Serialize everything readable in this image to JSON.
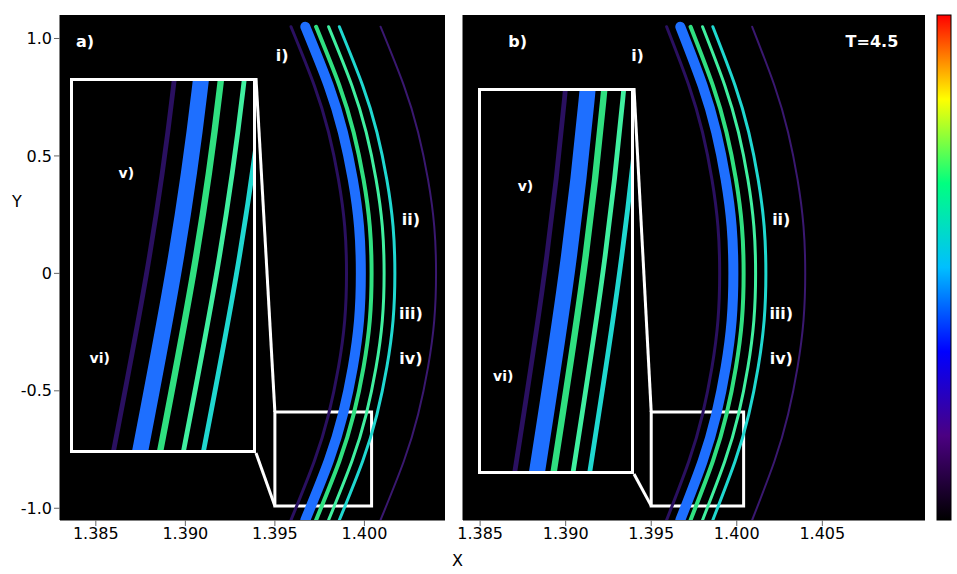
{
  "chart_data": [
    {
      "type": "line",
      "tick_labels": true,
      "xlim": [
        1.383,
        1.4045
      ],
      "xticks": [
        1.385,
        {
          "value": 1.39,
          "label": "1.390"
        },
        1.395,
        {
          "value": 1.4,
          "label": "1.400"
        }
      ],
      "ylim": [
        -1.05,
        1.1
      ],
      "yticks": [
        {
          "value": 1,
          "label": "1.0"
        },
        0.5,
        0,
        -0.5,
        {
          "value": -1,
          "label": "-1.0"
        }
      ],
      "y": [
        -1.05,
        -0.8,
        -0.6,
        -0.4,
        -0.2,
        0,
        0.2,
        0.4,
        0.6,
        0.8,
        1.05
      ],
      "series": [
        {
          "color": "#2a1060",
          "x": [
            1.3959,
            1.3972,
            1.398,
            1.39855,
            1.3989,
            1.399,
            1.3989,
            1.39855,
            1.398,
            1.3972,
            1.3959
          ]
        },
        {
          "color": "#1e6fff",
          "x": [
            1.3967,
            1.398,
            1.3988,
            1.39935,
            1.3997,
            1.3998,
            1.3997,
            1.39935,
            1.3988,
            1.398,
            1.3967
          ]
        },
        {
          "color": "#30e080",
          "x": [
            1.3973,
            1.3986,
            1.3994,
            1.39995,
            1.4003,
            1.4004,
            1.4003,
            1.39995,
            1.3994,
            1.3986,
            1.3973
          ]
        },
        {
          "color": "#40f0a0",
          "x": [
            1.398,
            1.3993,
            1.4001,
            1.40065,
            1.401,
            1.4011,
            1.401,
            1.40065,
            1.4001,
            1.3993,
            1.398
          ]
        },
        {
          "color": "#20d8d0",
          "x": [
            1.3986,
            1.3999,
            1.4007,
            1.40125,
            1.4016,
            1.4017,
            1.4016,
            1.40125,
            1.4007,
            1.3999,
            1.3986
          ]
        },
        {
          "color": "#3a1870",
          "x": [
            1.4009,
            1.4022,
            1.403,
            1.40355,
            1.4039,
            1.404,
            1.4039,
            1.40355,
            1.403,
            1.4022,
            1.4009
          ]
        }
      ],
      "annotations": [
        {
          "text": "a)",
          "x": 1.3844,
          "y": 0.99
        },
        {
          "text": "i)",
          "x": 1.3954,
          "y": 0.93
        },
        {
          "text": "ii)",
          "x": 1.4026,
          "y": 0.23
        },
        {
          "text": "iii)",
          "x": 1.4026,
          "y": -0.17
        },
        {
          "text": "iv)",
          "x": 1.4026,
          "y": -0.36
        }
      ],
      "inset": {
        "xlim": [
          1.395,
          1.4004
        ],
        "ylim": [
          -0.99,
          -0.59
        ],
        "annotations": [
          {
            "text": "v)",
            "x": 1.3966,
            "y": -0.69
          },
          {
            "text": "vi)",
            "x": 1.3958,
            "y": -0.89
          }
        ]
      }
    },
    {
      "type": "line",
      "tick_labels": "x",
      "xlim": [
        1.384,
        1.411
      ],
      "xticks": [
        1.385,
        {
          "value": 1.39,
          "label": "1.390"
        },
        1.395,
        {
          "value": 1.4,
          "label": "1.400"
        },
        1.405
      ],
      "ylim": [
        -1.05,
        1.1
      ],
      "yticks": [
        {
          "value": 1,
          "label": "1.0"
        },
        0.5,
        0,
        -0.5,
        {
          "value": -1,
          "label": "-1.0"
        }
      ],
      "y": [
        -1.05,
        -0.8,
        -0.6,
        -0.4,
        -0.2,
        0,
        0.2,
        0.4,
        0.6,
        0.8,
        1.05
      ],
      "series": [
        {
          "color": "#2a1060",
          "x": [
            1.3959,
            1.3972,
            1.398,
            1.39855,
            1.3989,
            1.399,
            1.3989,
            1.39855,
            1.398,
            1.3972,
            1.3959
          ]
        },
        {
          "color": "#1e6fff",
          "x": [
            1.3967,
            1.398,
            1.3988,
            1.39935,
            1.3997,
            1.3998,
            1.3997,
            1.39935,
            1.3988,
            1.398,
            1.3967
          ]
        },
        {
          "color": "#30e080",
          "x": [
            1.3973,
            1.3986,
            1.3994,
            1.39995,
            1.4003,
            1.4004,
            1.4003,
            1.39995,
            1.3994,
            1.3986,
            1.3973
          ]
        },
        {
          "color": "#40f0a0",
          "x": [
            1.398,
            1.3993,
            1.4001,
            1.40065,
            1.401,
            1.4011,
            1.401,
            1.40065,
            1.4001,
            1.3993,
            1.398
          ]
        },
        {
          "color": "#20d8d0",
          "x": [
            1.3986,
            1.3999,
            1.4007,
            1.40125,
            1.4016,
            1.4017,
            1.4016,
            1.40125,
            1.4007,
            1.3999,
            1.3986
          ]
        },
        {
          "color": "#3a1870",
          "x": [
            1.4009,
            1.4022,
            1.403,
            1.40355,
            1.4039,
            1.404,
            1.4039,
            1.40355,
            1.403,
            1.4022,
            1.4009
          ]
        }
      ],
      "annotations": [
        {
          "text": "b)",
          "x": 1.3872,
          "y": 0.99
        },
        {
          "text": "T=4.5",
          "x": 1.4079,
          "y": 0.99
        },
        {
          "text": "i)",
          "x": 1.3942,
          "y": 0.93
        },
        {
          "text": "ii)",
          "x": 1.4026,
          "y": 0.23
        },
        {
          "text": "iii)",
          "x": 1.4026,
          "y": -0.17
        },
        {
          "text": "iv)",
          "x": 1.4026,
          "y": -0.36
        }
      ],
      "inset": {
        "xlim": [
          1.395,
          1.4004
        ],
        "ylim": [
          -0.99,
          -0.59
        ],
        "annotations": [
          {
            "text": "v)",
            "x": 1.3966,
            "y": -0.69
          },
          {
            "text": "vi)",
            "x": 1.3958,
            "y": -0.89
          }
        ]
      }
    }
  ],
  "xlabel": "X",
  "ylabel": "Y",
  "colorbar": {
    "colors": [
      "#000000",
      "#4b0082",
      "#0000ff",
      "#00bfff",
      "#00ff80",
      "#ffff00",
      "#ff0000"
    ]
  }
}
